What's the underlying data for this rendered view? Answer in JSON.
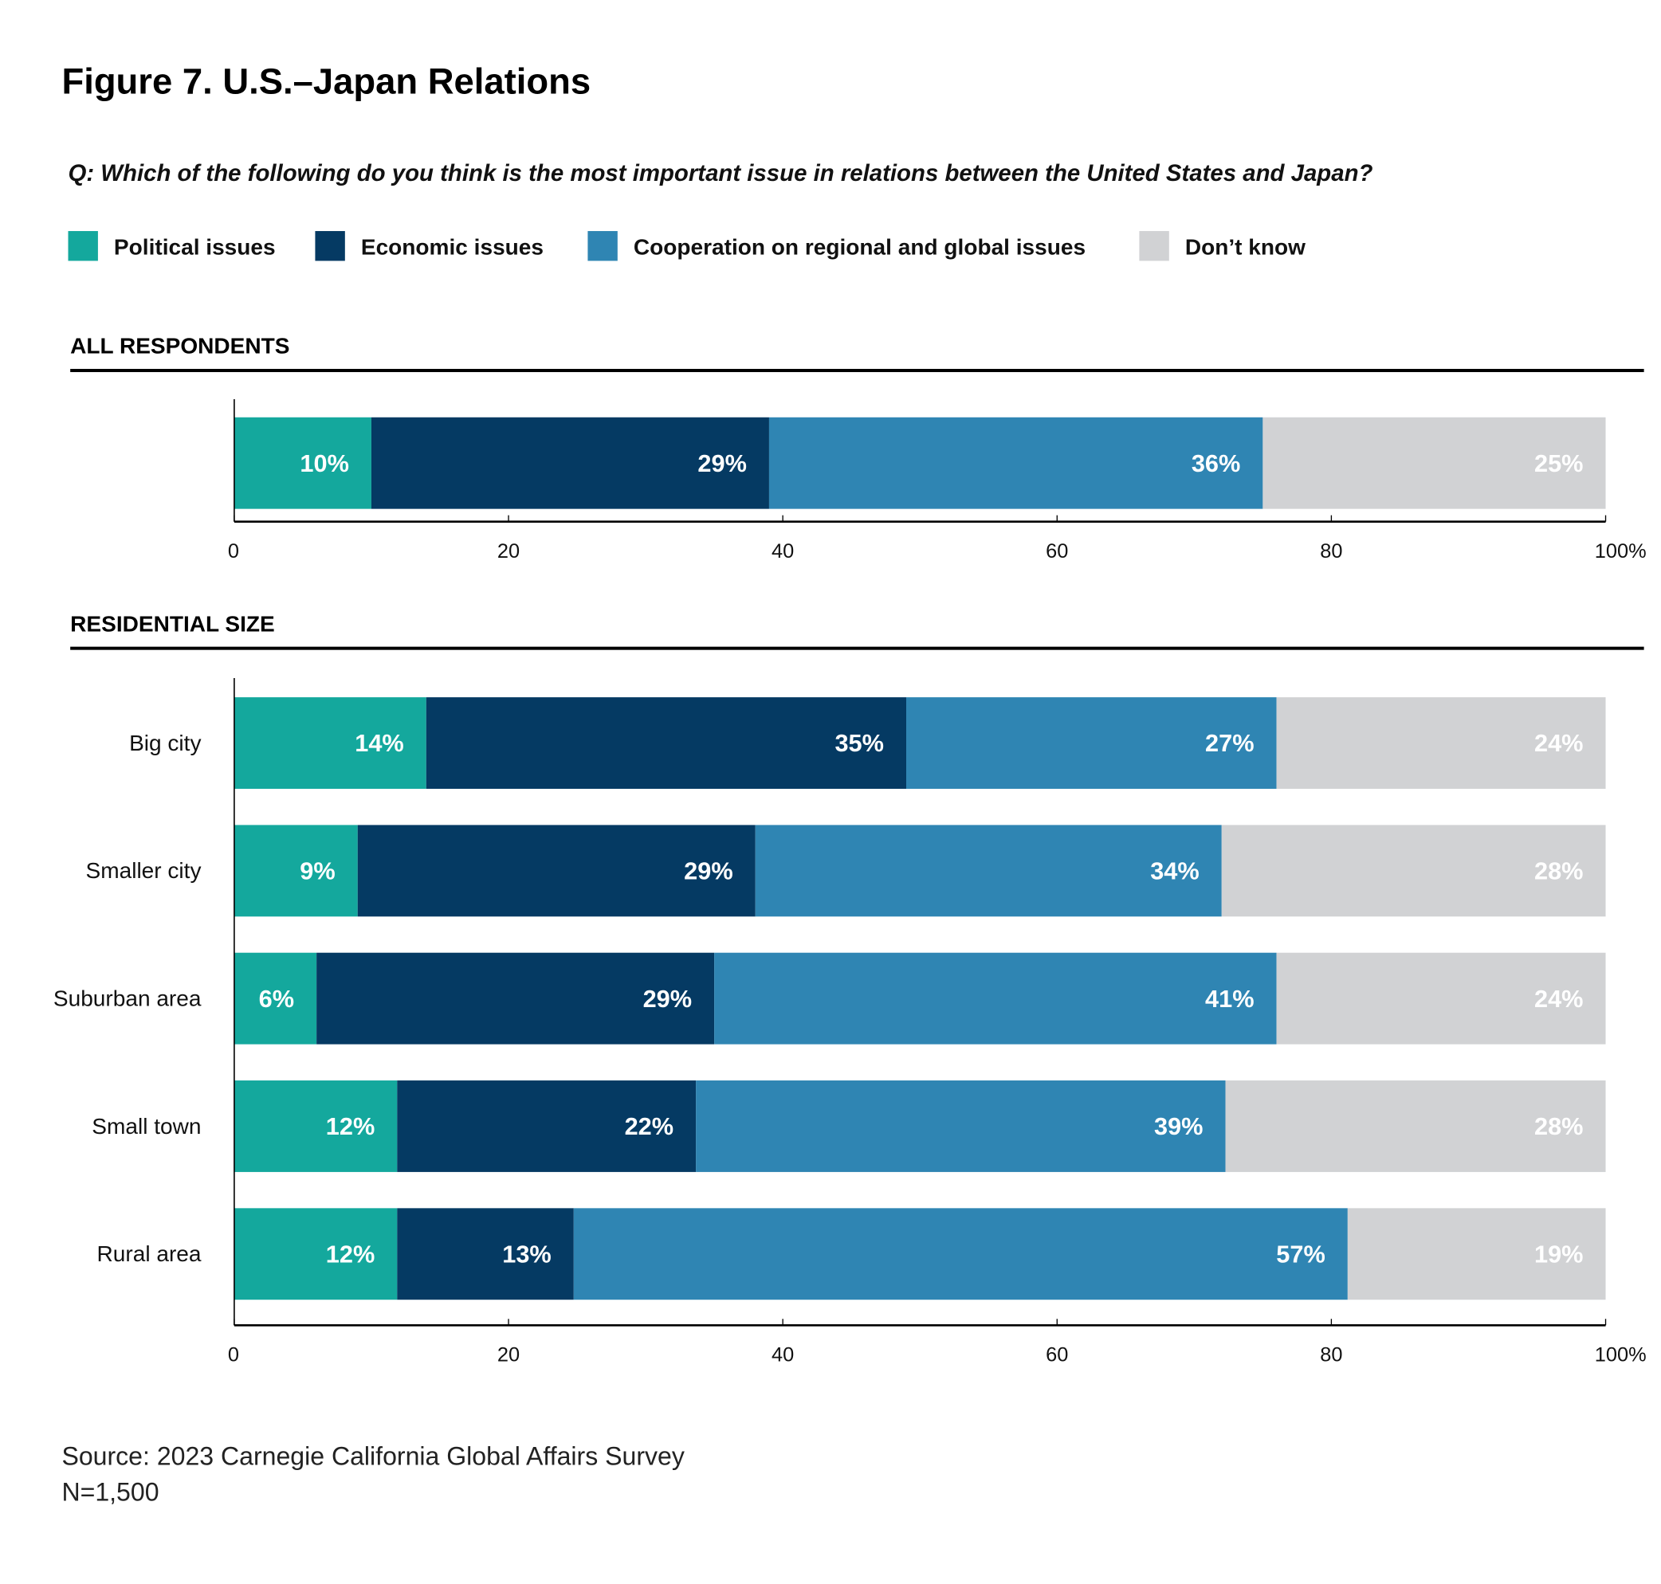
{
  "title": "Figure 7. U.S.–Japan Relations",
  "question": "Q: Which of the following do you think is the most important issue in relations between the United States and Japan?",
  "source": "Source: 2023 Carnegie California Global Affairs Survey",
  "sample": "N=1,500",
  "chart_data": [
    {
      "type": "bar",
      "orientation": "horizontal-stacked",
      "title": "ALL RESPONDENTS",
      "categories": [
        ""
      ],
      "xlim": [
        0,
        100
      ],
      "xticks": [
        "0",
        "20",
        "40",
        "60",
        "80",
        "100%"
      ],
      "series": [
        {
          "name": "Political issues",
          "color": "#14a89d",
          "values": [
            10
          ]
        },
        {
          "name": "Economic issues",
          "color": "#053a63",
          "values": [
            29
          ]
        },
        {
          "name": "Cooperation on regional and global issues",
          "color": "#2f85b3",
          "values": [
            36
          ]
        },
        {
          "name": "Don’t know",
          "color": "#d1d2d4",
          "values": [
            25
          ]
        }
      ],
      "legend": "top"
    },
    {
      "type": "bar",
      "orientation": "horizontal-stacked",
      "title": "RESIDENTIAL SIZE",
      "categories": [
        "Big city",
        "Smaller city",
        "Suburban area",
        "Small town",
        "Rural area"
      ],
      "xlim": [
        0,
        100
      ],
      "xticks": [
        "0",
        "20",
        "40",
        "60",
        "80",
        "100%"
      ],
      "series": [
        {
          "name": "Political issues",
          "color": "#14a89d",
          "values": [
            14,
            9,
            6,
            12,
            12
          ]
        },
        {
          "name": "Economic issues",
          "color": "#053a63",
          "values": [
            35,
            29,
            29,
            22,
            13
          ]
        },
        {
          "name": "Cooperation on regional and global issues",
          "color": "#2f85b3",
          "values": [
            27,
            34,
            41,
            39,
            57
          ]
        },
        {
          "name": "Don’t know",
          "color": "#d1d2d4",
          "values": [
            24,
            28,
            24,
            28,
            19
          ]
        }
      ]
    }
  ]
}
